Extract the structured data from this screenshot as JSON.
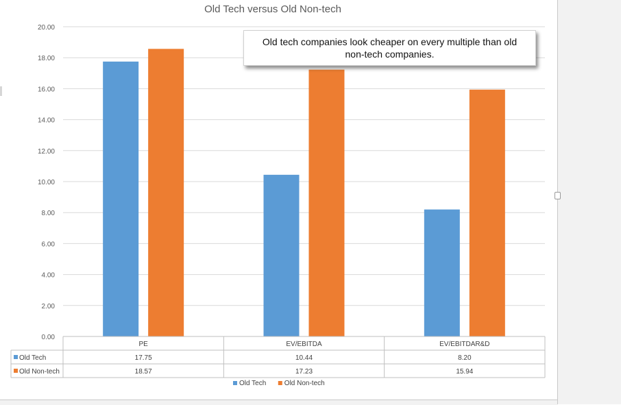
{
  "chart_data": {
    "type": "bar",
    "title": "Old Tech versus Old Non-tech",
    "categories": [
      "PE",
      "EV/EBITDA",
      "EV/EBITDAR&D"
    ],
    "series": [
      {
        "name": "Old Tech",
        "color": "#5b9bd5",
        "values": [
          17.75,
          10.44,
          8.2
        ],
        "labels": [
          "17.75",
          "10.44",
          "8.20"
        ]
      },
      {
        "name": "Old Non-tech",
        "color": "#ed7d31",
        "values": [
          18.57,
          17.23,
          15.94
        ],
        "labels": [
          "18.57",
          "17.23",
          "15.94"
        ]
      }
    ],
    "ylim": [
      0,
      20
    ],
    "yticks": [
      "0.00",
      "2.00",
      "4.00",
      "6.00",
      "8.00",
      "10.00",
      "12.00",
      "14.00",
      "16.00",
      "18.00",
      "20.00"
    ],
    "grid": true,
    "data_table": true,
    "legend": "bottom",
    "annotation": "Old tech companies look cheaper on every multiple than old non-tech companies."
  }
}
